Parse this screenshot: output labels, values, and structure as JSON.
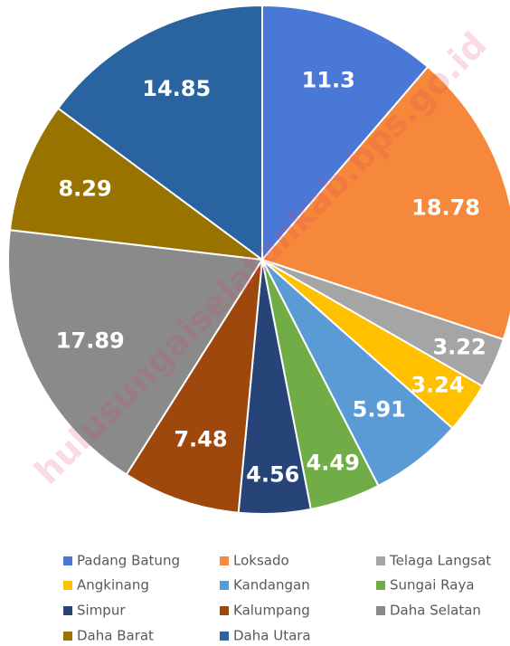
{
  "chart_data": {
    "type": "pie",
    "watermark": "hulusungaiselatankab.bps.go.id",
    "categories": [
      "Padang Batung",
      "Loksado",
      "Telaga Langsat",
      "Angkinang",
      "Kandangan",
      "Sungai Raya",
      "Simpur",
      "Kalumpang",
      "Daha Selatan",
      "Daha Barat",
      "Daha Utara"
    ],
    "values": [
      11.3,
      18.78,
      3.22,
      3.24,
      5.91,
      4.49,
      4.56,
      7.48,
      17.89,
      8.29,
      14.85
    ],
    "colors": [
      "#4a78d6",
      "#f5883a",
      "#a5a5a5",
      "#ffc000",
      "#5b9bd5",
      "#70ad47",
      "#264478",
      "#9e480e",
      "#8a8a8a",
      "#997300",
      "#2a64a0"
    ],
    "legend": "bottom"
  }
}
